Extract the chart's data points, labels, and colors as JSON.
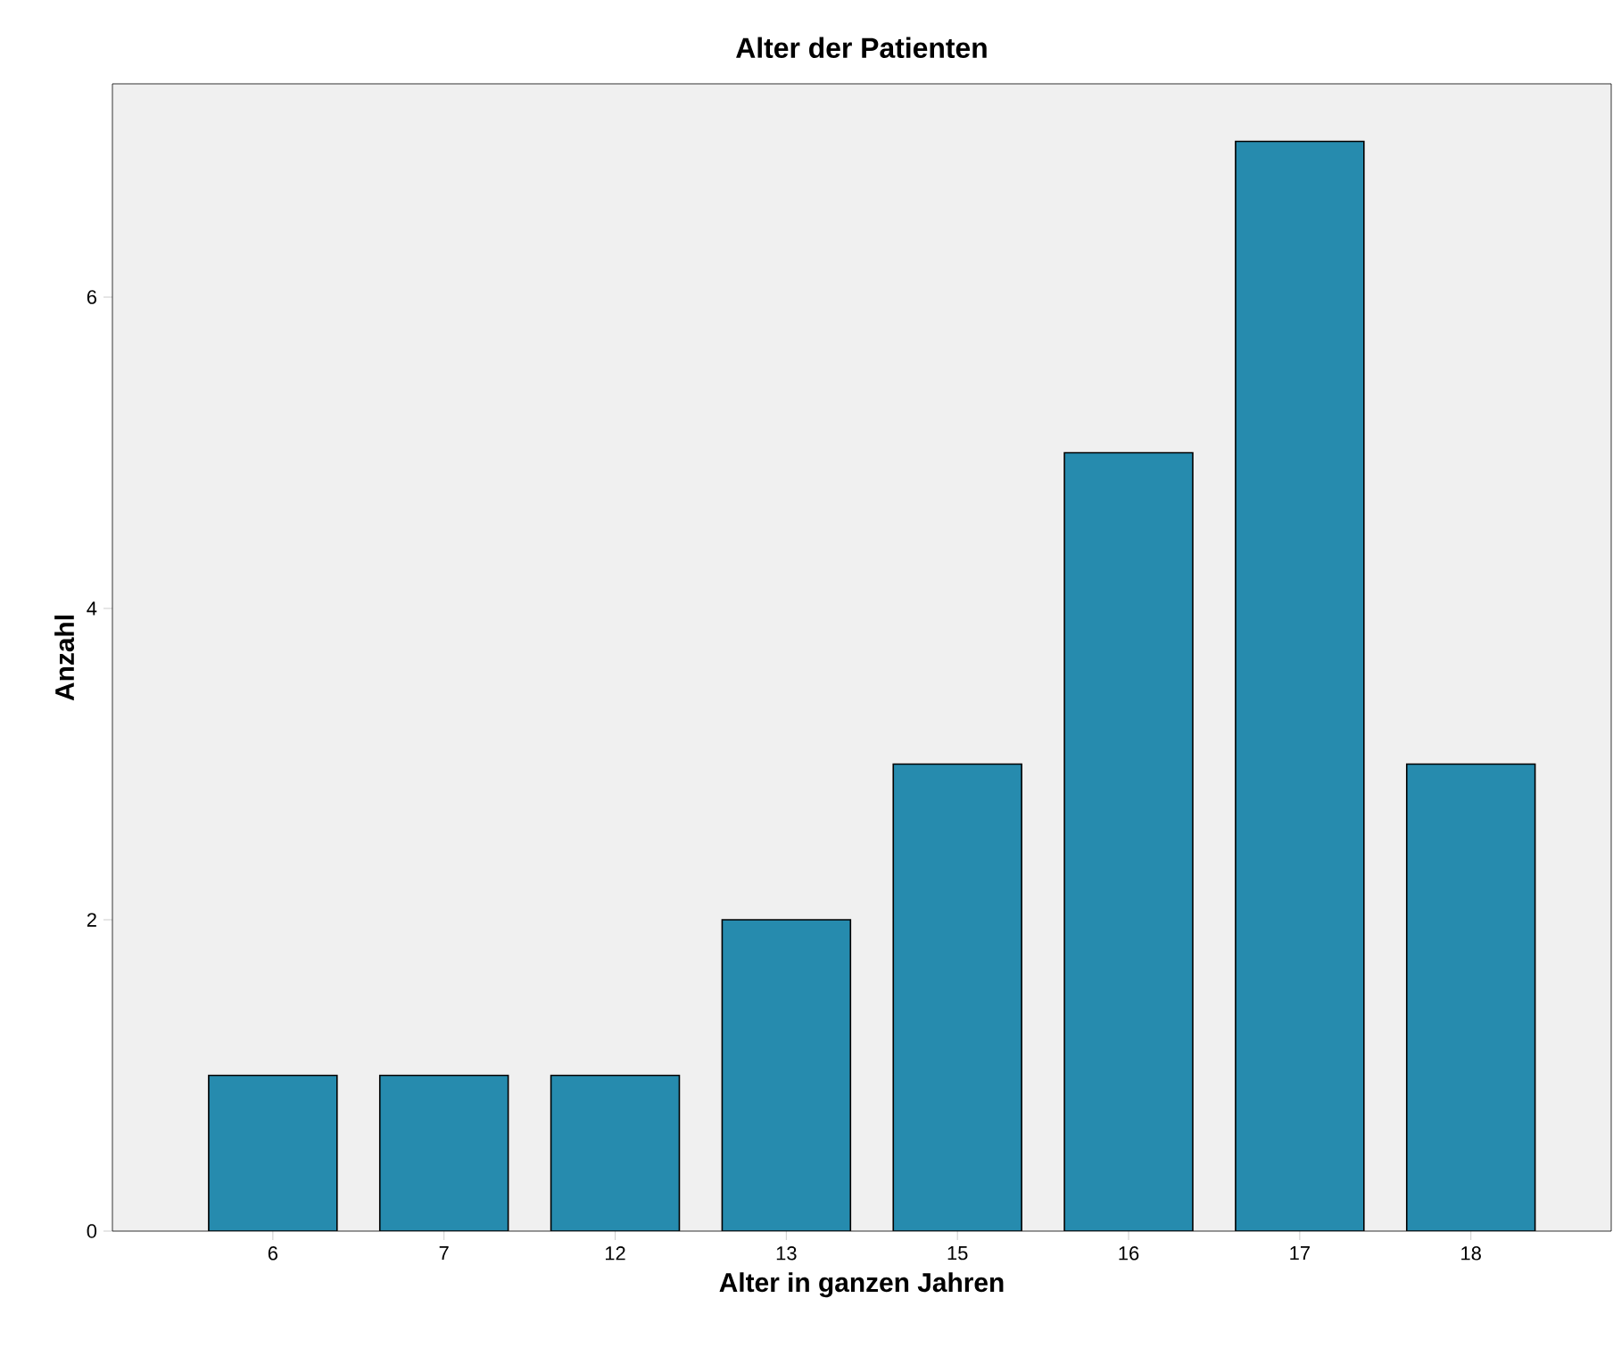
{
  "chart_data": {
    "type": "bar",
    "title": "Alter der Patienten",
    "xlabel": "Alter in ganzen Jahren",
    "ylabel": "Anzahl",
    "categories": [
      "6",
      "7",
      "12",
      "13",
      "15",
      "16",
      "17",
      "18"
    ],
    "values": [
      1,
      1,
      1,
      2,
      3,
      5,
      7,
      3
    ],
    "color": "#268bae",
    "ylim": [
      0,
      7.37
    ],
    "yticks": [
      0,
      2,
      4,
      6
    ],
    "grid": false
  }
}
